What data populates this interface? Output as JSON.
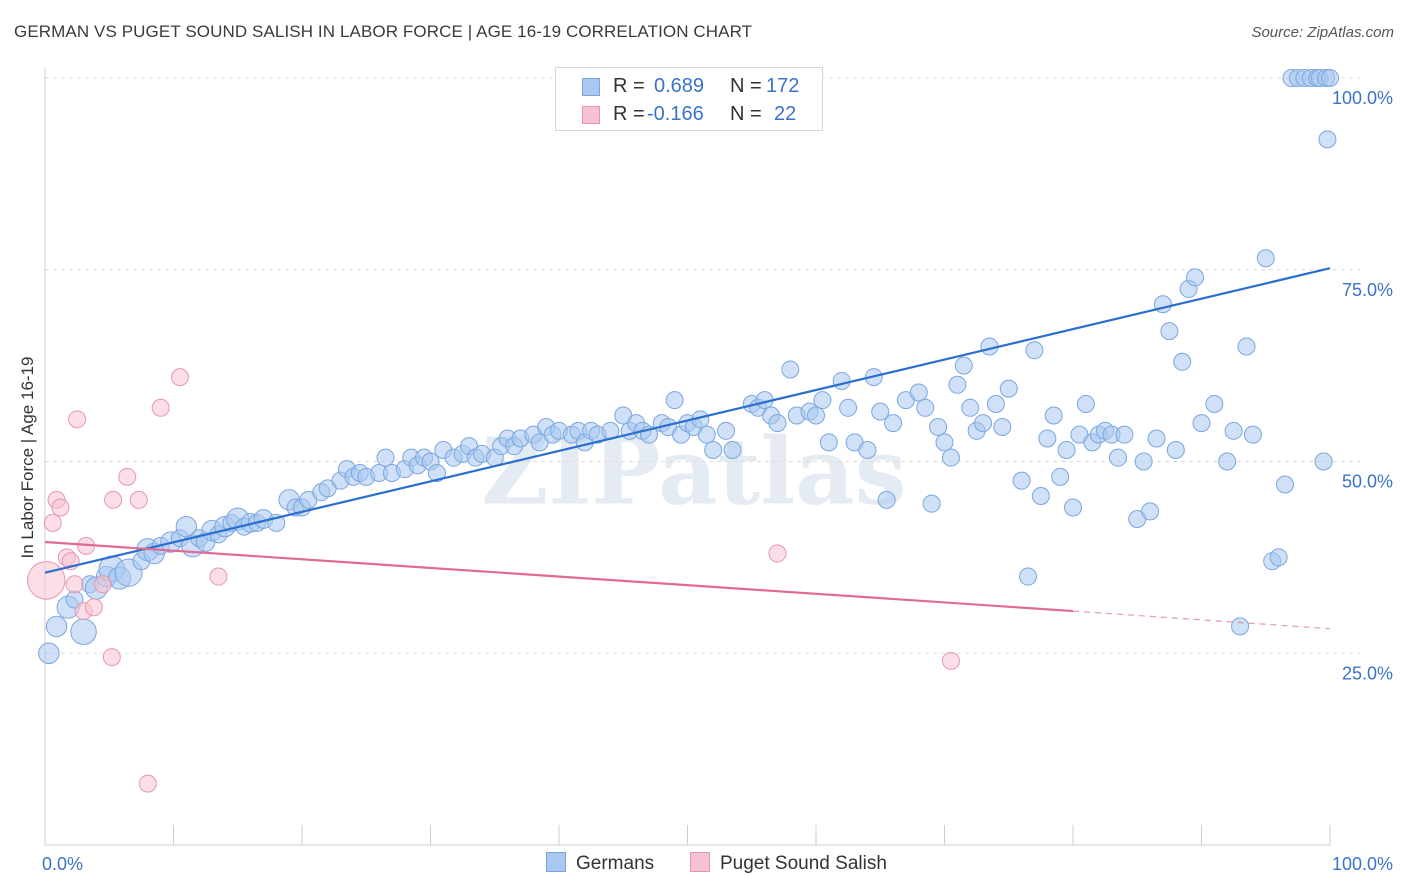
{
  "title": "GERMAN VS PUGET SOUND SALISH IN LABOR FORCE | AGE 16-19 CORRELATION CHART",
  "source": "Source: ZipAtlas.com",
  "legend": {
    "r_label": "R =",
    "n_label": "N =",
    "rows": [
      {
        "r": "0.689",
        "n": "172"
      },
      {
        "r": "-0.166",
        "n": "22"
      }
    ]
  },
  "watermark": "ZIPatlas",
  "colors": {
    "germans_fill": "#a9c8f0",
    "germans_stroke": "#7aa6e0",
    "germans_line": "#2a6fcf",
    "salish_fill": "#f7c3d2",
    "salish_stroke": "#e896b0",
    "salish_line": "#e06a92",
    "axis_text": "#3a74c8",
    "grid": "#dcdcdc"
  },
  "chart_data": {
    "type": "scatter",
    "ylabel": "In Labor Force | Age 16-19",
    "xlim": [
      0,
      100
    ],
    "ylim": [
      0,
      100
    ],
    "x_tick_labels": [
      "0.0%",
      "100.0%"
    ],
    "y_ticks": [
      25,
      50,
      75,
      100
    ],
    "y_tick_labels": [
      "25.0%",
      "50.0%",
      "75.0%",
      "100.0%"
    ],
    "grid": "horizontal dashed",
    "series": [
      {
        "name": "Germans",
        "trend": {
          "x0": 0,
          "y0": 35.5,
          "x1": 100,
          "y1": 75.2
        },
        "points": [
          [
            0.3,
            25,
            1.2
          ],
          [
            0.9,
            28.5,
            1.2
          ],
          [
            1.8,
            31,
            1.3
          ],
          [
            2.3,
            32,
            1
          ],
          [
            3,
            27.8,
            1.5
          ],
          [
            3.5,
            34,
            1
          ],
          [
            4,
            33.5,
            1.3
          ],
          [
            4.8,
            35,
            1.2
          ],
          [
            5.2,
            36,
            1.5
          ],
          [
            5.8,
            34.8,
            1.3
          ],
          [
            6.5,
            35.5,
            1.6
          ],
          [
            7.5,
            37,
            1
          ],
          [
            8,
            38.5,
            1.3
          ],
          [
            8.5,
            38,
            1.2
          ],
          [
            9,
            39,
            1
          ],
          [
            9.8,
            39.5,
            1.2
          ],
          [
            10.5,
            40,
            1
          ],
          [
            11,
            41.5,
            1.2
          ],
          [
            11.5,
            39,
            1.3
          ],
          [
            12,
            40,
            1
          ],
          [
            12.5,
            39.5,
            1.1
          ],
          [
            13,
            41,
            1.2
          ],
          [
            13.5,
            40.5,
            1
          ],
          [
            14,
            41.5,
            1.2
          ],
          [
            14.5,
            42,
            1
          ],
          [
            15,
            42.5,
            1.3
          ],
          [
            15.5,
            41.5,
            1
          ],
          [
            16,
            42,
            1.1
          ],
          [
            16.5,
            42,
            1
          ],
          [
            17,
            42.5,
            1.1
          ],
          [
            18,
            42,
            1
          ],
          [
            19,
            45,
            1.2
          ],
          [
            19.5,
            44,
            1
          ],
          [
            20,
            44,
            1
          ],
          [
            20.5,
            45,
            1
          ],
          [
            21.5,
            46,
            1
          ],
          [
            22,
            46.5,
            1
          ],
          [
            23,
            47.5,
            1
          ],
          [
            23.5,
            49,
            1
          ],
          [
            24,
            48,
            1
          ],
          [
            24.5,
            48.5,
            1
          ],
          [
            25,
            48,
            1
          ],
          [
            26,
            48.5,
            1
          ],
          [
            26.5,
            50.5,
            1
          ],
          [
            27,
            48.5,
            1
          ],
          [
            28,
            49,
            1
          ],
          [
            28.5,
            50.5,
            1
          ],
          [
            29,
            49.5,
            1
          ],
          [
            29.5,
            50.5,
            1
          ],
          [
            30,
            50,
            1
          ],
          [
            30.5,
            48.5,
            1
          ],
          [
            31,
            51.5,
            1
          ],
          [
            31.8,
            50.5,
            1
          ],
          [
            32.5,
            51,
            1
          ],
          [
            33,
            52,
            1
          ],
          [
            33.5,
            50.5,
            1
          ],
          [
            34,
            51,
            1
          ],
          [
            35,
            50.5,
            1
          ],
          [
            35.5,
            52,
            1
          ],
          [
            36,
            53,
            1
          ],
          [
            36.5,
            52,
            1
          ],
          [
            37,
            53,
            1
          ],
          [
            38,
            53.5,
            1
          ],
          [
            38.5,
            52.5,
            1
          ],
          [
            39,
            54.5,
            1
          ],
          [
            39.5,
            53.5,
            1
          ],
          [
            40,
            54,
            1
          ],
          [
            41,
            53.5,
            1
          ],
          [
            41.5,
            54,
            1
          ],
          [
            42,
            52.5,
            1
          ],
          [
            42.5,
            54,
            1
          ],
          [
            43,
            53.5,
            1
          ],
          [
            44,
            54,
            1
          ],
          [
            45,
            56,
            1
          ],
          [
            45.5,
            54,
            1
          ],
          [
            46,
            55,
            1
          ],
          [
            46.5,
            54,
            1
          ],
          [
            47,
            53.5,
            1
          ],
          [
            48,
            55,
            1
          ],
          [
            48.5,
            54.5,
            1
          ],
          [
            49,
            58,
            1
          ],
          [
            49.5,
            53.5,
            1
          ],
          [
            50,
            55,
            1
          ],
          [
            50.5,
            54.5,
            1
          ],
          [
            51,
            55.5,
            1
          ],
          [
            51.5,
            53.5,
            1
          ],
          [
            52,
            51.5,
            1
          ],
          [
            53,
            54,
            1
          ],
          [
            53.5,
            51.5,
            1
          ],
          [
            55,
            57.5,
            1
          ],
          [
            55.5,
            57,
            1
          ],
          [
            56,
            58,
            1
          ],
          [
            56.5,
            56,
            1
          ],
          [
            57,
            55,
            1
          ],
          [
            58,
            62,
            1
          ],
          [
            58.5,
            56,
            1
          ],
          [
            59.5,
            56.5,
            1
          ],
          [
            60,
            56,
            1
          ],
          [
            60.5,
            58,
            1
          ],
          [
            61,
            52.5,
            1
          ],
          [
            62,
            60.5,
            1
          ],
          [
            62.5,
            57,
            1
          ],
          [
            63,
            52.5,
            1
          ],
          [
            64,
            51.5,
            1
          ],
          [
            64.5,
            61,
            1
          ],
          [
            65,
            56.5,
            1
          ],
          [
            65.5,
            45,
            1
          ],
          [
            66,
            55,
            1
          ],
          [
            67,
            58,
            1
          ],
          [
            68,
            59,
            1
          ],
          [
            68.5,
            57,
            1
          ],
          [
            69,
            44.5,
            1
          ],
          [
            69.5,
            54.5,
            1
          ],
          [
            70,
            52.5,
            1
          ],
          [
            70.5,
            50.5,
            1
          ],
          [
            71,
            60,
            1
          ],
          [
            71.5,
            62.5,
            1
          ],
          [
            72,
            57,
            1
          ],
          [
            72.5,
            54,
            1
          ],
          [
            73,
            55,
            1
          ],
          [
            73.5,
            65,
            1
          ],
          [
            74,
            57.5,
            1
          ],
          [
            74.5,
            54.5,
            1
          ],
          [
            75,
            59.5,
            1
          ],
          [
            76,
            47.5,
            1
          ],
          [
            76.5,
            35,
            1
          ],
          [
            77,
            64.5,
            1
          ],
          [
            77.5,
            45.5,
            1
          ],
          [
            78,
            53,
            1
          ],
          [
            78.5,
            56,
            1
          ],
          [
            79,
            48,
            1
          ],
          [
            79.5,
            51.5,
            1
          ],
          [
            80,
            44,
            1
          ],
          [
            80.5,
            53.5,
            1
          ],
          [
            81,
            57.5,
            1
          ],
          [
            81.5,
            52.5,
            1
          ],
          [
            82,
            53.5,
            1
          ],
          [
            82.5,
            54,
            1
          ],
          [
            83,
            53.5,
            1
          ],
          [
            83.5,
            50.5,
            1
          ],
          [
            84,
            53.5,
            1
          ],
          [
            85,
            42.5,
            1
          ],
          [
            85.5,
            50,
            1
          ],
          [
            86,
            43.5,
            1
          ],
          [
            86.5,
            53,
            1
          ],
          [
            87,
            70.5,
            1
          ],
          [
            87.5,
            67,
            1
          ],
          [
            88,
            51.5,
            1
          ],
          [
            88.5,
            63,
            1
          ],
          [
            89,
            72.5,
            1
          ],
          [
            89.5,
            74,
            1
          ],
          [
            90,
            55,
            1
          ],
          [
            91,
            57.5,
            1
          ],
          [
            92,
            50,
            1
          ],
          [
            92.5,
            54,
            1
          ],
          [
            93,
            28.5,
            1
          ],
          [
            93.5,
            65,
            1
          ],
          [
            94,
            53.5,
            1
          ],
          [
            95,
            76.5,
            1
          ],
          [
            95.5,
            37,
            1
          ],
          [
            96,
            37.5,
            1
          ],
          [
            96.5,
            47,
            1
          ],
          [
            97,
            100,
            1
          ],
          [
            97.5,
            100,
            1
          ],
          [
            98,
            100,
            1
          ],
          [
            98.5,
            100,
            1
          ],
          [
            99,
            100,
            1
          ],
          [
            99.2,
            100,
            1
          ],
          [
            99.5,
            50,
            1
          ],
          [
            99.7,
            100,
            1
          ],
          [
            99.8,
            92,
            1
          ],
          [
            100,
            100,
            1
          ]
        ]
      },
      {
        "name": "Puget Sound Salish",
        "trend": {
          "x0": 0,
          "y0": 39.5,
          "x1": 80,
          "y1": 30.5,
          "dash_to_x": 100,
          "dash_to_y": 28.2
        },
        "points": [
          [
            0.1,
            34.5,
            2.2
          ],
          [
            0.6,
            42,
            1
          ],
          [
            0.9,
            45,
            1
          ],
          [
            1.2,
            44,
            1
          ],
          [
            1.7,
            37.5,
            1
          ],
          [
            2,
            37,
            1
          ],
          [
            2.3,
            34,
            1
          ],
          [
            2.5,
            55.5,
            1
          ],
          [
            3,
            30.5,
            1
          ],
          [
            3.2,
            39,
            1
          ],
          [
            3.8,
            31,
            1
          ],
          [
            4.5,
            34,
            1
          ],
          [
            5.2,
            24.5,
            1
          ],
          [
            5.3,
            45,
            1
          ],
          [
            6.4,
            48,
            1
          ],
          [
            7.3,
            45,
            1
          ],
          [
            8,
            8,
            1
          ],
          [
            9,
            57,
            1
          ],
          [
            10.5,
            61,
            1
          ],
          [
            13.5,
            35,
            1
          ],
          [
            57,
            38,
            1
          ],
          [
            70.5,
            24,
            1
          ]
        ]
      }
    ]
  }
}
